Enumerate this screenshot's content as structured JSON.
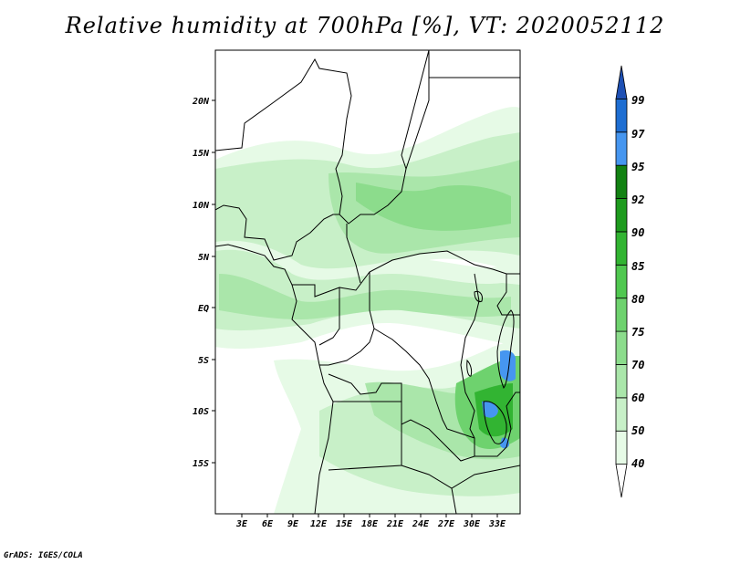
{
  "title": "Relative humidity at 700hPa [%], VT: 2020052112",
  "credit": "GrADS: IGES/COLA",
  "map": {
    "lat_labels": [
      "20N",
      "15N",
      "10N",
      "5N",
      "EQ",
      "5S",
      "10S",
      "15S"
    ],
    "lon_labels": [
      "3E",
      "6E",
      "9E",
      "12E",
      "15E",
      "18E",
      "21E",
      "24E",
      "27E",
      "30E",
      "33E"
    ]
  },
  "colorbar": {
    "labels": [
      "40",
      "50",
      "60",
      "70",
      "75",
      "80",
      "85",
      "90",
      "92",
      "95",
      "97",
      "99"
    ],
    "colors": [
      "#ffffff",
      "#e6fae6",
      "#c8f0c8",
      "#aae6aa",
      "#8cdc8c",
      "#6ed26e",
      "#50c850",
      "#32b432",
      "#1e9b1e",
      "#128212",
      "#4696f0",
      "#1e6ed2",
      "#1e50b4"
    ]
  }
}
